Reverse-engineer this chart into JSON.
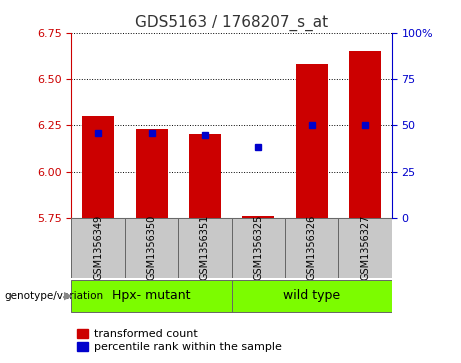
{
  "title": "GDS5163 / 1768207_s_at",
  "samples": [
    "GSM1356349",
    "GSM1356350",
    "GSM1356351",
    "GSM1356325",
    "GSM1356326",
    "GSM1356327"
  ],
  "red_values": [
    6.3,
    6.23,
    6.2,
    5.762,
    6.58,
    6.65
  ],
  "blue_values": [
    6.21,
    6.21,
    6.195,
    6.13,
    6.25,
    6.252
  ],
  "y_min": 5.75,
  "y_max": 6.75,
  "y_ticks_left": [
    5.75,
    6.0,
    6.25,
    6.5,
    6.75
  ],
  "y_ticks_right": [
    0,
    25,
    50,
    75,
    100
  ],
  "group1_label": "Hpx- mutant",
  "group2_label": "wild type",
  "group_label": "genotype/variation",
  "bar_width": 0.6,
  "red_color": "#CC0000",
  "blue_color": "#0000CC",
  "title_color": "#333333",
  "left_axis_color": "#CC0000",
  "right_axis_color": "#0000CC",
  "legend_red": "transformed count",
  "legend_blue": "percentile rank within the sample",
  "plot_bg": "#FFFFFF",
  "grid_color": "#000000",
  "sample_box_color": "#C8C8C8",
  "group_box_color": "#7CFC00",
  "label_fontsize": 8,
  "title_fontsize": 11,
  "sample_fontsize": 7,
  "group_fontsize": 9,
  "legend_fontsize": 8
}
